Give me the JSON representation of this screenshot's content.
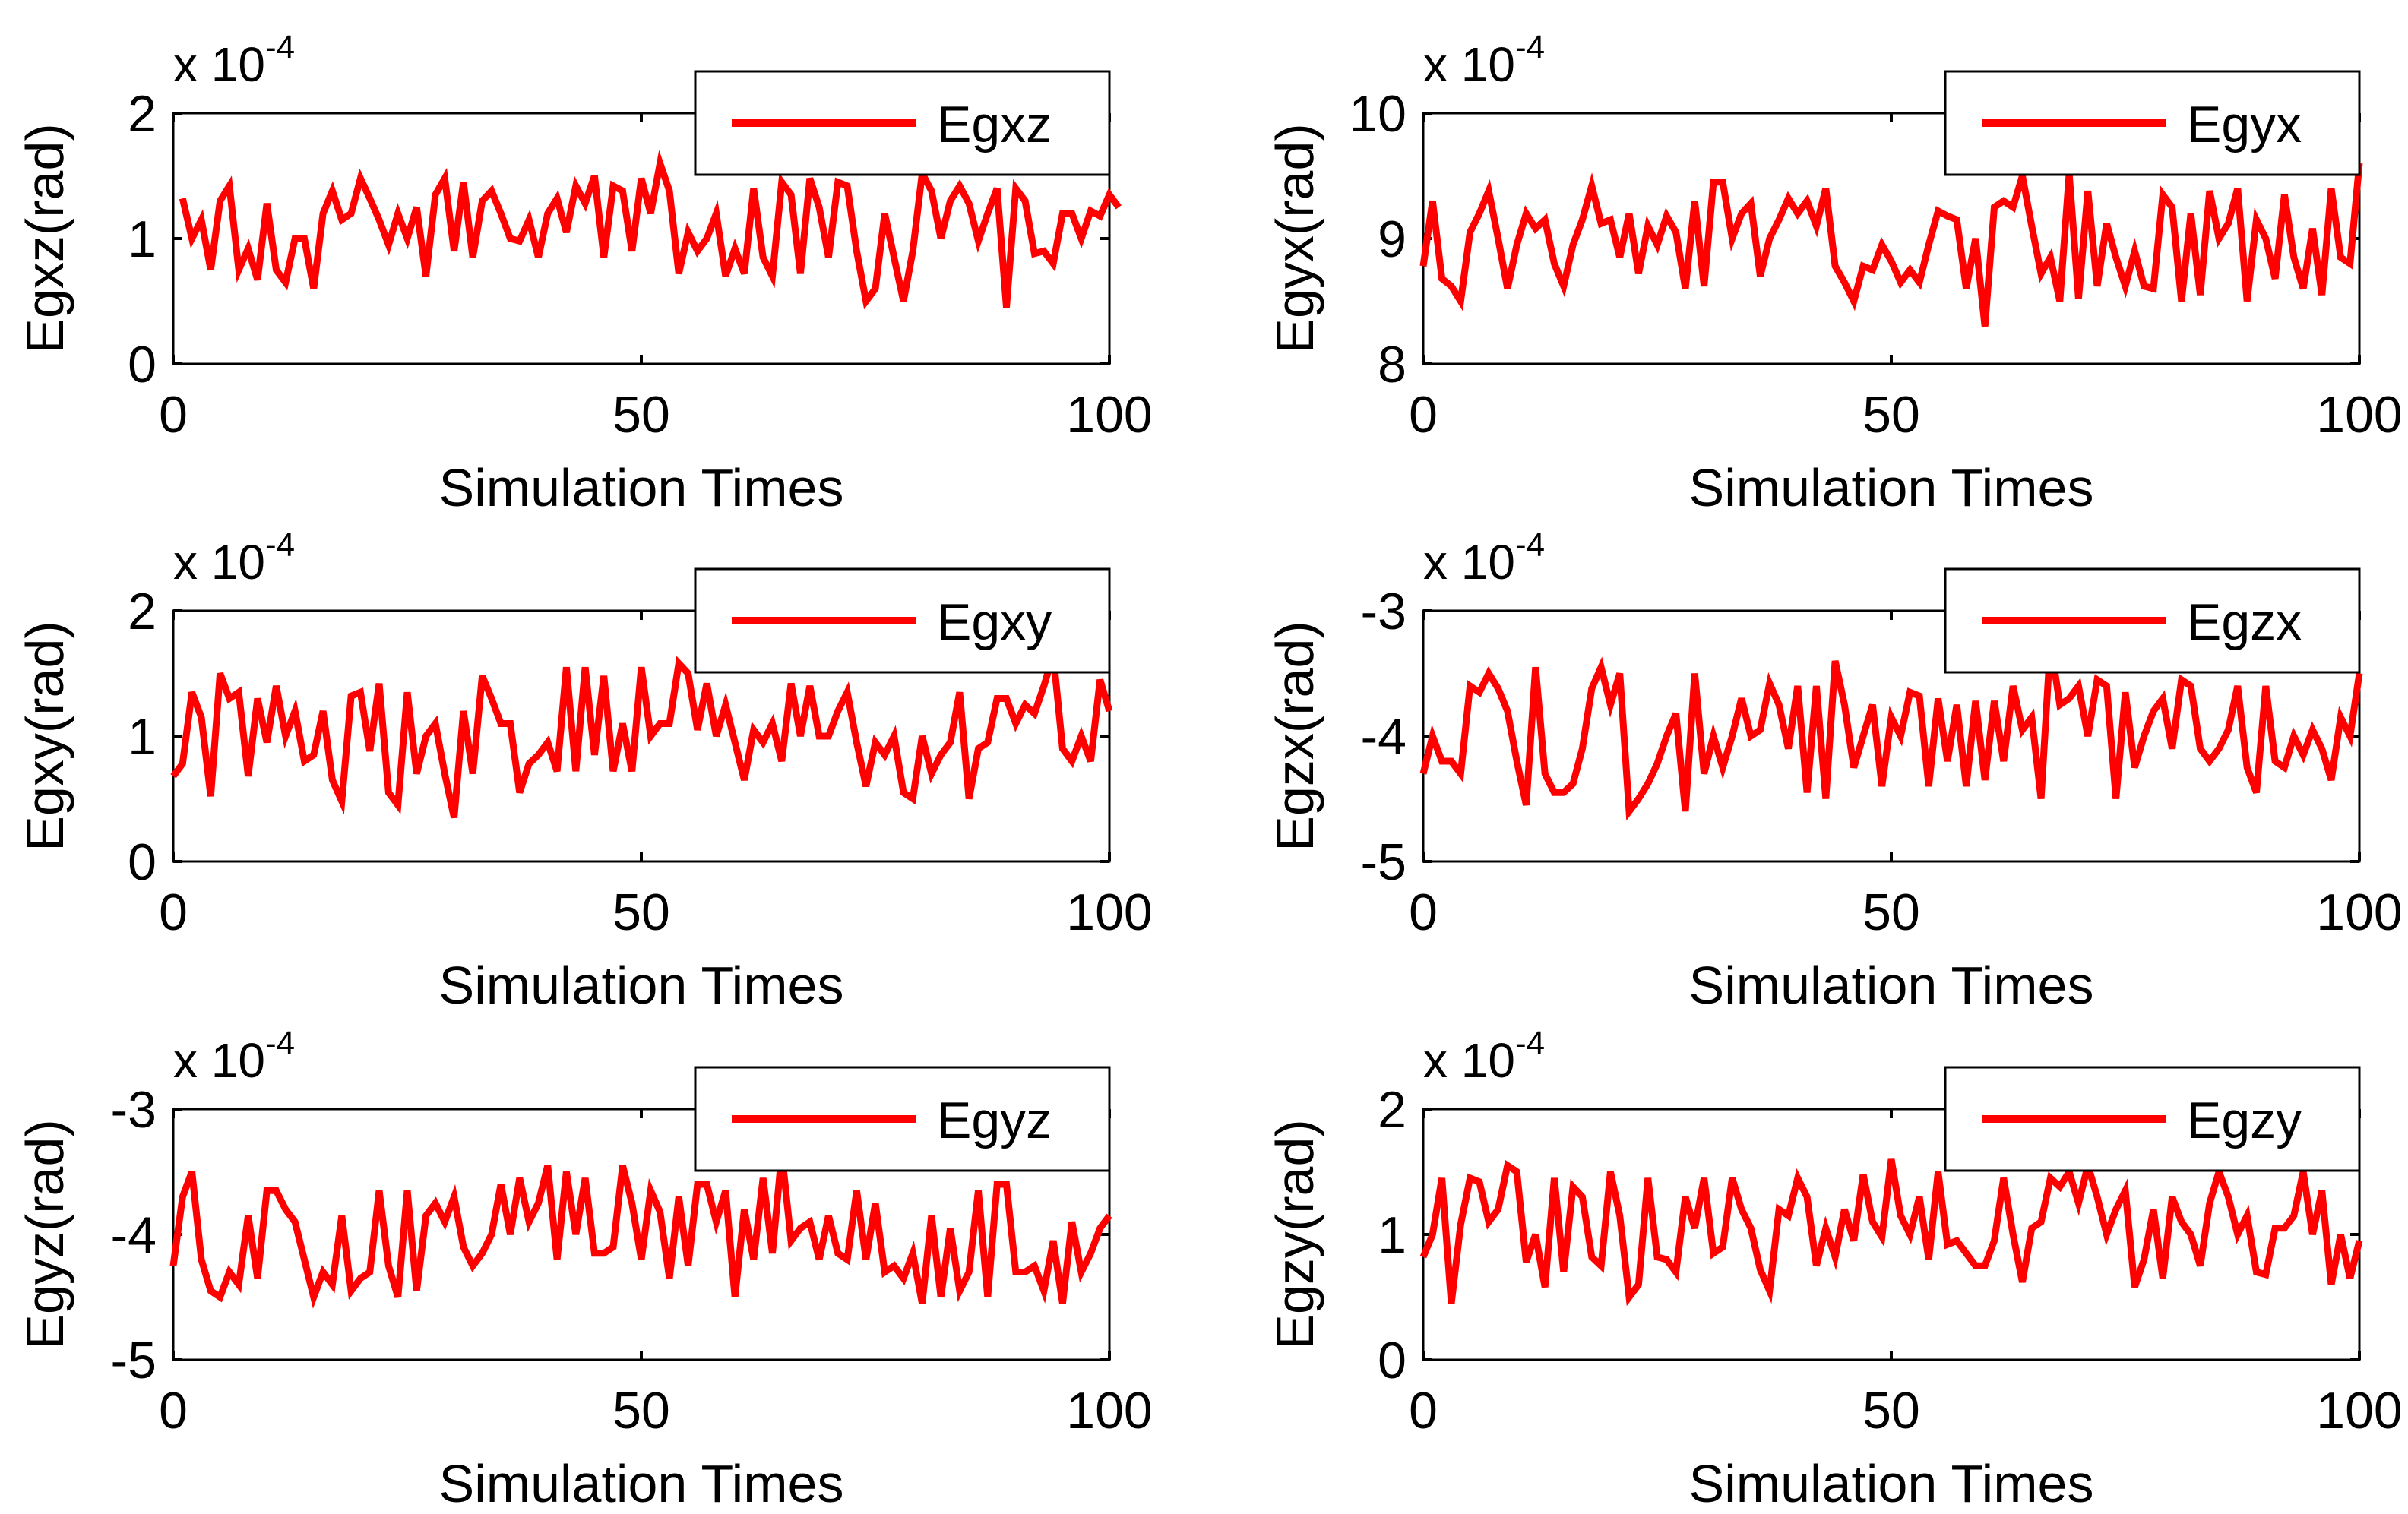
{
  "figure": {
    "colors": {
      "line": "#ff0000",
      "axis": "#000000",
      "background": "#ffffff"
    }
  },
  "chart_data": [
    {
      "type": "line",
      "ylabel": "Egxz(rad)",
      "xlabel": "Simulation Times",
      "exponent_base": "x 10",
      "exponent_power": "-4",
      "legend": "Egxz",
      "legend_position": "top-right",
      "xlim": [
        0,
        100
      ],
      "ylim": [
        0,
        2
      ],
      "xticks": [
        0,
        50,
        100
      ],
      "yticks": [
        0,
        1,
        2
      ],
      "ytick_labels": [
        "0",
        "1",
        "2"
      ],
      "x_start": 1,
      "series": [
        {
          "name": "Egxz",
          "values": [
            1.32,
            1.0,
            1.15,
            0.75,
            1.3,
            1.42,
            0.75,
            0.92,
            0.67,
            1.28,
            0.75,
            0.65,
            1.0,
            1.0,
            0.6,
            1.2,
            1.38,
            1.15,
            1.2,
            1.48,
            1.32,
            1.15,
            0.95,
            1.2,
            1.0,
            1.25,
            0.7,
            1.35,
            1.48,
            0.9,
            1.45,
            0.85,
            1.3,
            1.38,
            1.2,
            1.0,
            0.98,
            1.15,
            0.85,
            1.2,
            1.32,
            1.05,
            1.42,
            1.28,
            1.5,
            0.85,
            1.42,
            1.38,
            0.9,
            1.48,
            1.2,
            1.6,
            1.38,
            0.72,
            1.05,
            0.9,
            1.0,
            1.2,
            0.7,
            0.92,
            0.72,
            1.4,
            0.85,
            0.7,
            1.45,
            1.35,
            0.72,
            1.48,
            1.25,
            0.85,
            1.45,
            1.42,
            0.9,
            0.5,
            0.6,
            1.2,
            0.85,
            0.5,
            0.9,
            1.52,
            1.38,
            1.0,
            1.3,
            1.42,
            1.28,
            0.98,
            1.2,
            1.4,
            0.45,
            1.4,
            1.3,
            0.88,
            0.9,
            0.8,
            1.2,
            1.2,
            1.0,
            1.22,
            1.18,
            1.35,
            1.25
          ]
        }
      ]
    },
    {
      "type": "line",
      "ylabel": "Egyx(rad)",
      "xlabel": "Simulation Times",
      "exponent_base": "x 10",
      "exponent_power": "-4",
      "legend": "Egyx",
      "legend_position": "top-right",
      "xlim": [
        0,
        100
      ],
      "ylim": [
        8,
        10
      ],
      "xticks": [
        0,
        50,
        100
      ],
      "yticks": [
        8,
        9,
        10
      ],
      "ytick_labels": [
        "8",
        "9",
        "10"
      ],
      "x_start": 0,
      "series": [
        {
          "name": "Egyx",
          "values": [
            8.78,
            9.3,
            8.68,
            8.62,
            8.5,
            9.05,
            9.2,
            9.38,
            9.0,
            8.6,
            8.95,
            9.2,
            9.08,
            9.15,
            8.8,
            8.62,
            8.95,
            9.15,
            9.42,
            9.12,
            9.15,
            8.85,
            9.2,
            8.72,
            9.1,
            8.95,
            9.18,
            9.05,
            8.6,
            9.3,
            8.62,
            9.45,
            9.45,
            9.0,
            9.2,
            9.28,
            8.7,
            9.0,
            9.15,
            9.32,
            9.2,
            9.3,
            9.1,
            9.4,
            8.78,
            8.65,
            8.5,
            8.78,
            8.75,
            8.95,
            8.82,
            8.65,
            8.75,
            8.65,
            8.95,
            9.22,
            9.18,
            9.15,
            8.6,
            9.0,
            8.3,
            9.25,
            9.3,
            9.25,
            9.5,
            9.1,
            8.72,
            8.85,
            8.5,
            9.52,
            8.52,
            9.38,
            8.62,
            9.12,
            8.85,
            8.62,
            8.9,
            8.62,
            8.6,
            9.35,
            9.25,
            8.5,
            9.2,
            8.55,
            9.38,
            9.0,
            9.12,
            9.4,
            8.5,
            9.15,
            9.0,
            8.68,
            9.35,
            8.85,
            8.6,
            9.08,
            8.55,
            9.4,
            8.85,
            8.8,
            9.6
          ]
        }
      ]
    },
    {
      "type": "line",
      "ylabel": "Egxy(rad)",
      "xlabel": "Simulation Times",
      "exponent_base": "x 10",
      "exponent_power": "-4",
      "legend": "Egxy",
      "legend_position": "top-right",
      "xlim": [
        0,
        100
      ],
      "ylim": [
        0,
        2
      ],
      "xticks": [
        0,
        50,
        100
      ],
      "yticks": [
        0,
        1,
        2
      ],
      "ytick_labels": [
        "0",
        "1",
        "2"
      ],
      "x_start": 0,
      "series": [
        {
          "name": "Egxy",
          "values": [
            0.68,
            0.78,
            1.35,
            1.15,
            0.52,
            1.5,
            1.3,
            1.35,
            0.68,
            1.3,
            0.95,
            1.4,
            1.0,
            1.2,
            0.8,
            0.85,
            1.2,
            0.65,
            0.48,
            1.32,
            1.35,
            0.88,
            1.42,
            0.55,
            0.45,
            1.35,
            0.7,
            1.0,
            1.1,
            0.7,
            0.35,
            1.2,
            0.7,
            1.48,
            1.3,
            1.1,
            1.1,
            0.55,
            0.78,
            0.85,
            0.95,
            0.72,
            1.55,
            0.72,
            1.55,
            0.85,
            1.48,
            0.72,
            1.1,
            0.72,
            1.55,
            1.0,
            1.1,
            1.1,
            1.58,
            1.5,
            1.05,
            1.42,
            1.0,
            1.25,
            0.95,
            0.65,
            1.05,
            0.95,
            1.1,
            0.8,
            1.42,
            1.0,
            1.4,
            1.0,
            1.0,
            1.2,
            1.35,
            0.95,
            0.6,
            0.95,
            0.85,
            1.0,
            0.55,
            0.5,
            1.0,
            0.7,
            0.85,
            0.95,
            1.35,
            0.5,
            0.9,
            0.95,
            1.3,
            1.3,
            1.1,
            1.25,
            1.18,
            1.4,
            1.65,
            0.9,
            0.8,
            1.0,
            0.8,
            1.45,
            1.2
          ]
        }
      ]
    },
    {
      "type": "line",
      "ylabel": "Egzx(rad)",
      "xlabel": "Simulation Times",
      "exponent_base": "x 10",
      "exponent_power": "-4",
      "legend": "Egzx",
      "legend_position": "top-right",
      "xlim": [
        0,
        100
      ],
      "ylim": [
        -5,
        -3
      ],
      "xticks": [
        0,
        50,
        100
      ],
      "yticks": [
        -5,
        -4,
        -3
      ],
      "ytick_labels": [
        "-5",
        "-4",
        "-3"
      ],
      "x_start": 0,
      "series": [
        {
          "name": "Egzx",
          "values": [
            -4.3,
            -4.0,
            -4.2,
            -4.2,
            -4.3,
            -3.6,
            -3.65,
            -3.5,
            -3.62,
            -3.8,
            -4.2,
            -4.55,
            -3.45,
            -4.3,
            -4.45,
            -4.45,
            -4.38,
            -4.1,
            -3.62,
            -3.45,
            -3.75,
            -3.5,
            -4.6,
            -4.5,
            -4.38,
            -4.22,
            -4.0,
            -3.82,
            -4.6,
            -3.5,
            -4.3,
            -4.0,
            -4.25,
            -4.0,
            -3.7,
            -4.0,
            -3.95,
            -3.58,
            -3.75,
            -4.1,
            -3.6,
            -4.45,
            -3.6,
            -4.5,
            -3.4,
            -3.75,
            -4.25,
            -4.0,
            -3.75,
            -4.4,
            -3.85,
            -4.0,
            -3.65,
            -3.68,
            -4.4,
            -3.7,
            -4.2,
            -3.75,
            -4.4,
            -3.72,
            -4.35,
            -3.72,
            -4.2,
            -3.6,
            -3.95,
            -3.85,
            -4.5,
            -3.25,
            -3.75,
            -3.7,
            -3.6,
            -4.0,
            -3.55,
            -3.6,
            -4.5,
            -3.65,
            -4.25,
            -4.0,
            -3.8,
            -3.7,
            -4.1,
            -3.55,
            -3.6,
            -4.1,
            -4.2,
            -4.1,
            -3.95,
            -3.6,
            -4.25,
            -4.45,
            -3.6,
            -4.2,
            -4.25,
            -4.0,
            -4.15,
            -3.95,
            -4.1,
            -4.35,
            -3.85,
            -4.0,
            -3.5
          ]
        }
      ]
    },
    {
      "type": "line",
      "ylabel": "Egyz(rad)",
      "xlabel": "Simulation Times",
      "exponent_base": "x 10",
      "exponent_power": "-4",
      "legend": "Egyz",
      "legend_position": "top-right",
      "xlim": [
        0,
        100
      ],
      "ylim": [
        -5,
        -3
      ],
      "xticks": [
        0,
        50,
        100
      ],
      "yticks": [
        -5,
        -4,
        -3
      ],
      "ytick_labels": [
        "-5",
        "-4",
        "-3"
      ],
      "x_start": 0,
      "series": [
        {
          "name": "Egyz",
          "values": [
            -4.25,
            -3.7,
            -3.5,
            -4.2,
            -4.45,
            -4.5,
            -4.3,
            -4.4,
            -3.85,
            -4.35,
            -3.65,
            -3.65,
            -3.8,
            -3.9,
            -4.2,
            -4.5,
            -4.3,
            -4.4,
            -3.85,
            -4.45,
            -4.35,
            -4.3,
            -3.65,
            -4.25,
            -4.5,
            -3.65,
            -4.45,
            -3.85,
            -3.75,
            -3.9,
            -3.7,
            -4.1,
            -4.25,
            -4.15,
            -4.0,
            -3.6,
            -4.0,
            -3.55,
            -3.9,
            -3.75,
            -3.45,
            -4.2,
            -3.5,
            -4.0,
            -3.55,
            -4.15,
            -4.15,
            -4.1,
            -3.45,
            -3.75,
            -4.2,
            -3.65,
            -3.82,
            -4.35,
            -3.7,
            -4.25,
            -3.6,
            -3.6,
            -3.9,
            -3.65,
            -4.5,
            -3.8,
            -4.2,
            -3.55,
            -4.15,
            -3.35,
            -4.05,
            -3.95,
            -3.9,
            -4.2,
            -3.85,
            -4.15,
            -4.2,
            -3.65,
            -4.2,
            -3.75,
            -4.3,
            -4.25,
            -4.35,
            -4.15,
            -4.55,
            -3.85,
            -4.5,
            -3.95,
            -4.45,
            -4.3,
            -3.65,
            -4.5,
            -3.6,
            -3.6,
            -4.3,
            -4.3,
            -4.25,
            -4.45,
            -4.05,
            -4.55,
            -3.9,
            -4.3,
            -4.15,
            -3.95,
            -3.85
          ]
        }
      ]
    },
    {
      "type": "line",
      "ylabel": "Egzy(rad)",
      "xlabel": "Simulation Times",
      "exponent_base": "x 10",
      "exponent_power": "-4",
      "legend": "Egzy",
      "legend_position": "top-right",
      "xlim": [
        0,
        100
      ],
      "ylim": [
        0,
        2
      ],
      "xticks": [
        0,
        50,
        100
      ],
      "yticks": [
        0,
        1,
        2
      ],
      "ytick_labels": [
        "0",
        "1",
        "2"
      ],
      "x_start": 0,
      "series": [
        {
          "name": "Egzy",
          "values": [
            0.82,
            1.0,
            1.45,
            0.45,
            1.08,
            1.45,
            1.42,
            1.1,
            1.2,
            1.55,
            1.5,
            0.78,
            1.0,
            0.58,
            1.45,
            0.7,
            1.38,
            1.3,
            0.82,
            0.75,
            1.5,
            1.15,
            0.5,
            0.6,
            1.45,
            0.82,
            0.8,
            0.7,
            1.3,
            1.05,
            1.45,
            0.85,
            0.9,
            1.45,
            1.2,
            1.05,
            0.72,
            0.55,
            1.2,
            1.15,
            1.45,
            1.3,
            0.75,
            1.05,
            0.82,
            1.2,
            0.95,
            1.48,
            1.1,
            0.98,
            1.6,
            1.15,
            1.0,
            1.3,
            0.8,
            1.5,
            0.92,
            0.95,
            0.85,
            0.75,
            0.75,
            0.95,
            1.45,
            1.0,
            0.62,
            1.05,
            1.1,
            1.45,
            1.38,
            1.5,
            1.25,
            1.55,
            1.3,
            1.0,
            1.2,
            1.35,
            0.58,
            0.8,
            1.2,
            0.65,
            1.3,
            1.1,
            1.0,
            0.75,
            1.25,
            1.5,
            1.3,
            1.0,
            1.15,
            0.7,
            0.68,
            1.05,
            1.05,
            1.15,
            1.5,
            1.0,
            1.35,
            0.6,
            1.0,
            0.65,
            0.95
          ]
        }
      ]
    }
  ]
}
